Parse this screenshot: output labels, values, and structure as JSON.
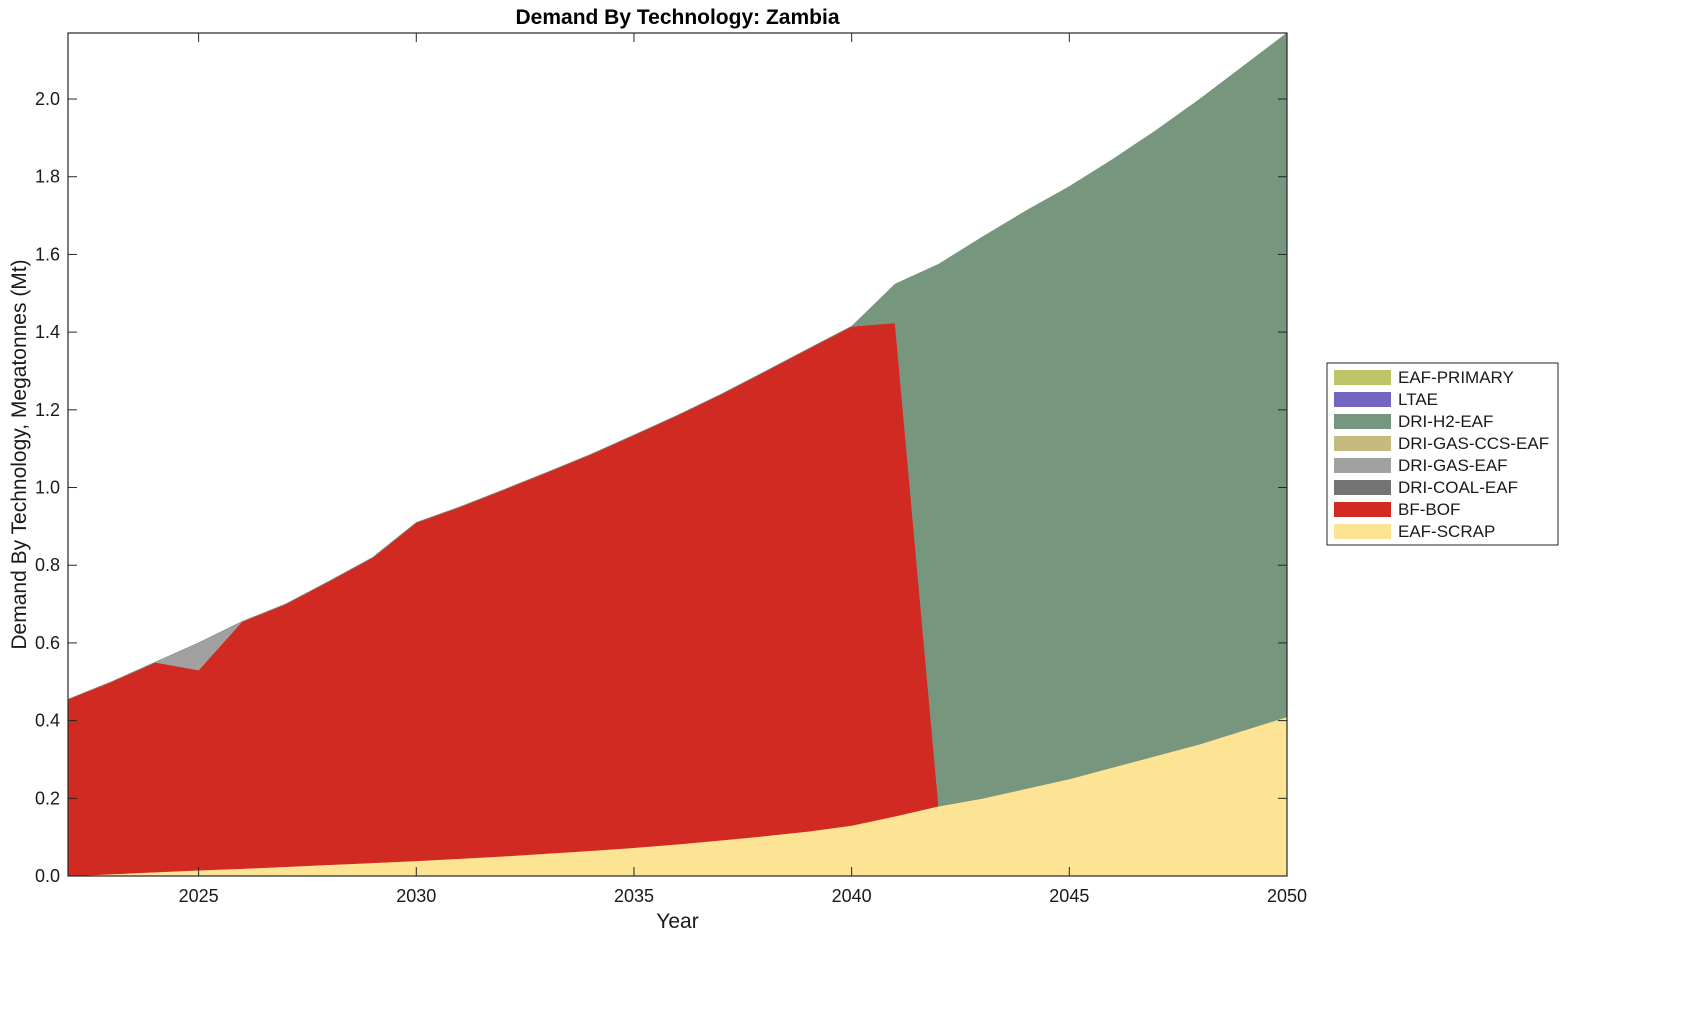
{
  "chart_data": {
    "type": "area",
    "stacked": true,
    "title": "Demand By Technology: Zambia",
    "xlabel": "Year",
    "ylabel": "Demand By Technology, Megatonnes (Mt)",
    "xlim": [
      2022,
      2050
    ],
    "ylim": [
      0,
      2.17
    ],
    "xticks": [
      2025,
      2030,
      2035,
      2040,
      2045,
      2050
    ],
    "yticks": [
      0.0,
      0.2,
      0.4,
      0.6,
      0.8,
      1.0,
      1.2,
      1.4,
      1.6,
      1.8,
      2.0
    ],
    "ytick_labels": [
      "0.0",
      "0.2",
      "0.4",
      "0.6",
      "0.8",
      "1.0",
      "1.2",
      "1.4",
      "1.6",
      "1.8",
      "2.0"
    ],
    "legend_position": "right",
    "grid": false,
    "x": [
      2022,
      2023,
      2024,
      2025,
      2026,
      2027,
      2028,
      2029,
      2030,
      2031,
      2032,
      2033,
      2034,
      2035,
      2036,
      2037,
      2038,
      2039,
      2040,
      2041,
      2042,
      2043,
      2044,
      2045,
      2046,
      2047,
      2048,
      2049,
      2050
    ],
    "series": [
      {
        "name": "EAF-SCRAP",
        "color": "#fde394",
        "values": [
          0.0,
          0.005,
          0.01,
          0.015,
          0.019,
          0.024,
          0.029,
          0.034,
          0.039,
          0.045,
          0.051,
          0.058,
          0.065,
          0.073,
          0.082,
          0.092,
          0.103,
          0.115,
          0.13,
          0.154,
          0.18,
          0.2,
          0.225,
          0.25,
          0.28,
          0.31,
          0.34,
          0.375,
          0.41
        ]
      },
      {
        "name": "BF-BOF",
        "color": "#d12a23",
        "values": [
          0.455,
          0.495,
          0.54,
          0.515,
          0.636,
          0.676,
          0.73,
          0.786,
          0.871,
          0.905,
          0.943,
          0.981,
          1.02,
          1.062,
          1.104,
          1.148,
          1.195,
          1.242,
          1.285,
          1.27,
          0.0,
          0.0,
          0.0,
          0.0,
          0.0,
          0.0,
          0.0,
          0.0,
          0.0
        ]
      },
      {
        "name": "DRI-COAL-EAF",
        "color": "#737373",
        "values": [
          0,
          0,
          0,
          0,
          0,
          0,
          0,
          0,
          0,
          0,
          0,
          0,
          0,
          0,
          0,
          0,
          0,
          0,
          0,
          0,
          0,
          0,
          0,
          0,
          0,
          0,
          0,
          0,
          0
        ]
      },
      {
        "name": "DRI-GAS-EAF",
        "color": "#a1a1a1",
        "values": [
          0.0,
          0.0,
          0.0,
          0.07,
          0.0,
          0.0,
          0.0,
          0.0,
          0.0,
          0.0,
          0.0,
          0.0,
          0.0,
          0.0,
          0.0,
          0.0,
          0.0,
          0.0,
          0.0,
          0.0,
          0.0,
          0.0,
          0.0,
          0.0,
          0.0,
          0.0,
          0.0,
          0.0,
          0.0
        ]
      },
      {
        "name": "DRI-GAS-CCS-EAF",
        "color": "#c4bc7f",
        "values": [
          0,
          0,
          0,
          0,
          0,
          0,
          0,
          0,
          0,
          0,
          0,
          0,
          0,
          0,
          0,
          0,
          0,
          0,
          0,
          0,
          0,
          0,
          0,
          0,
          0,
          0,
          0,
          0,
          0
        ]
      },
      {
        "name": "DRI-H2-EAF",
        "color": "#76977e",
        "values": [
          0.0,
          0.0,
          0.0,
          0.0,
          0.0,
          0.0,
          0.0,
          0.0,
          0.0,
          0.0,
          0.0,
          0.0,
          0.0,
          0.0,
          0.0,
          0.0,
          0.0,
          0.0,
          0.0,
          0.1,
          1.395,
          1.445,
          1.487,
          1.525,
          1.565,
          1.61,
          1.66,
          1.71,
          1.76
        ]
      },
      {
        "name": "LTAE",
        "color": "#7466c0",
        "values": [
          0,
          0,
          0,
          0,
          0,
          0,
          0,
          0,
          0,
          0,
          0,
          0,
          0,
          0,
          0,
          0,
          0,
          0,
          0,
          0,
          0,
          0,
          0,
          0,
          0,
          0,
          0,
          0,
          0
        ]
      },
      {
        "name": "EAF-PRIMARY",
        "color": "#bfc567",
        "values": [
          0,
          0,
          0,
          0,
          0,
          0,
          0,
          0,
          0,
          0,
          0,
          0,
          0,
          0,
          0,
          0,
          0,
          0,
          0,
          0,
          0,
          0,
          0,
          0,
          0,
          0,
          0,
          0,
          0
        ]
      }
    ],
    "legend_order": [
      "EAF-PRIMARY",
      "LTAE",
      "DRI-H2-EAF",
      "DRI-GAS-CCS-EAF",
      "DRI-GAS-EAF",
      "DRI-COAL-EAF",
      "BF-BOF",
      "EAF-SCRAP"
    ]
  }
}
